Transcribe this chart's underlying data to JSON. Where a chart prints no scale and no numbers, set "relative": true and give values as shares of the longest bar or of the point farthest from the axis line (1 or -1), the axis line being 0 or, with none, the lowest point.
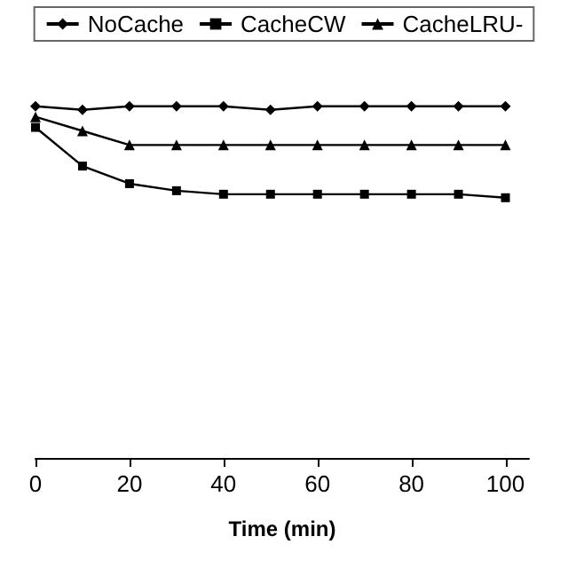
{
  "chart_data": {
    "type": "line",
    "xlabel": "Time (min)",
    "x": [
      0,
      10,
      20,
      30,
      40,
      50,
      60,
      70,
      80,
      90,
      100
    ],
    "xlim": [
      0,
      105
    ],
    "xticks": [
      0,
      20,
      40,
      60,
      80,
      100
    ],
    "relative": true,
    "legend": "top",
    "grid": false,
    "series": [
      {
        "name": "NoCache",
        "color": "#000000",
        "marker": "diamond",
        "values": [
          1,
          0.99,
          1,
          1,
          1,
          0.99,
          1,
          1,
          1,
          1,
          1
        ]
      },
      {
        "name": "CacheCW",
        "color": "#000000",
        "marker": "square",
        "values": [
          0.94,
          0.83,
          0.78,
          0.76,
          0.75,
          0.75,
          0.75,
          0.75,
          0.75,
          0.75,
          0.74
        ]
      },
      {
        "name": "CacheLRU-",
        "color": "#000000",
        "marker": "triangle",
        "values": [
          0.97,
          0.93,
          0.89,
          0.89,
          0.89,
          0.89,
          0.89,
          0.89,
          0.89,
          0.89,
          0.89
        ]
      }
    ]
  }
}
